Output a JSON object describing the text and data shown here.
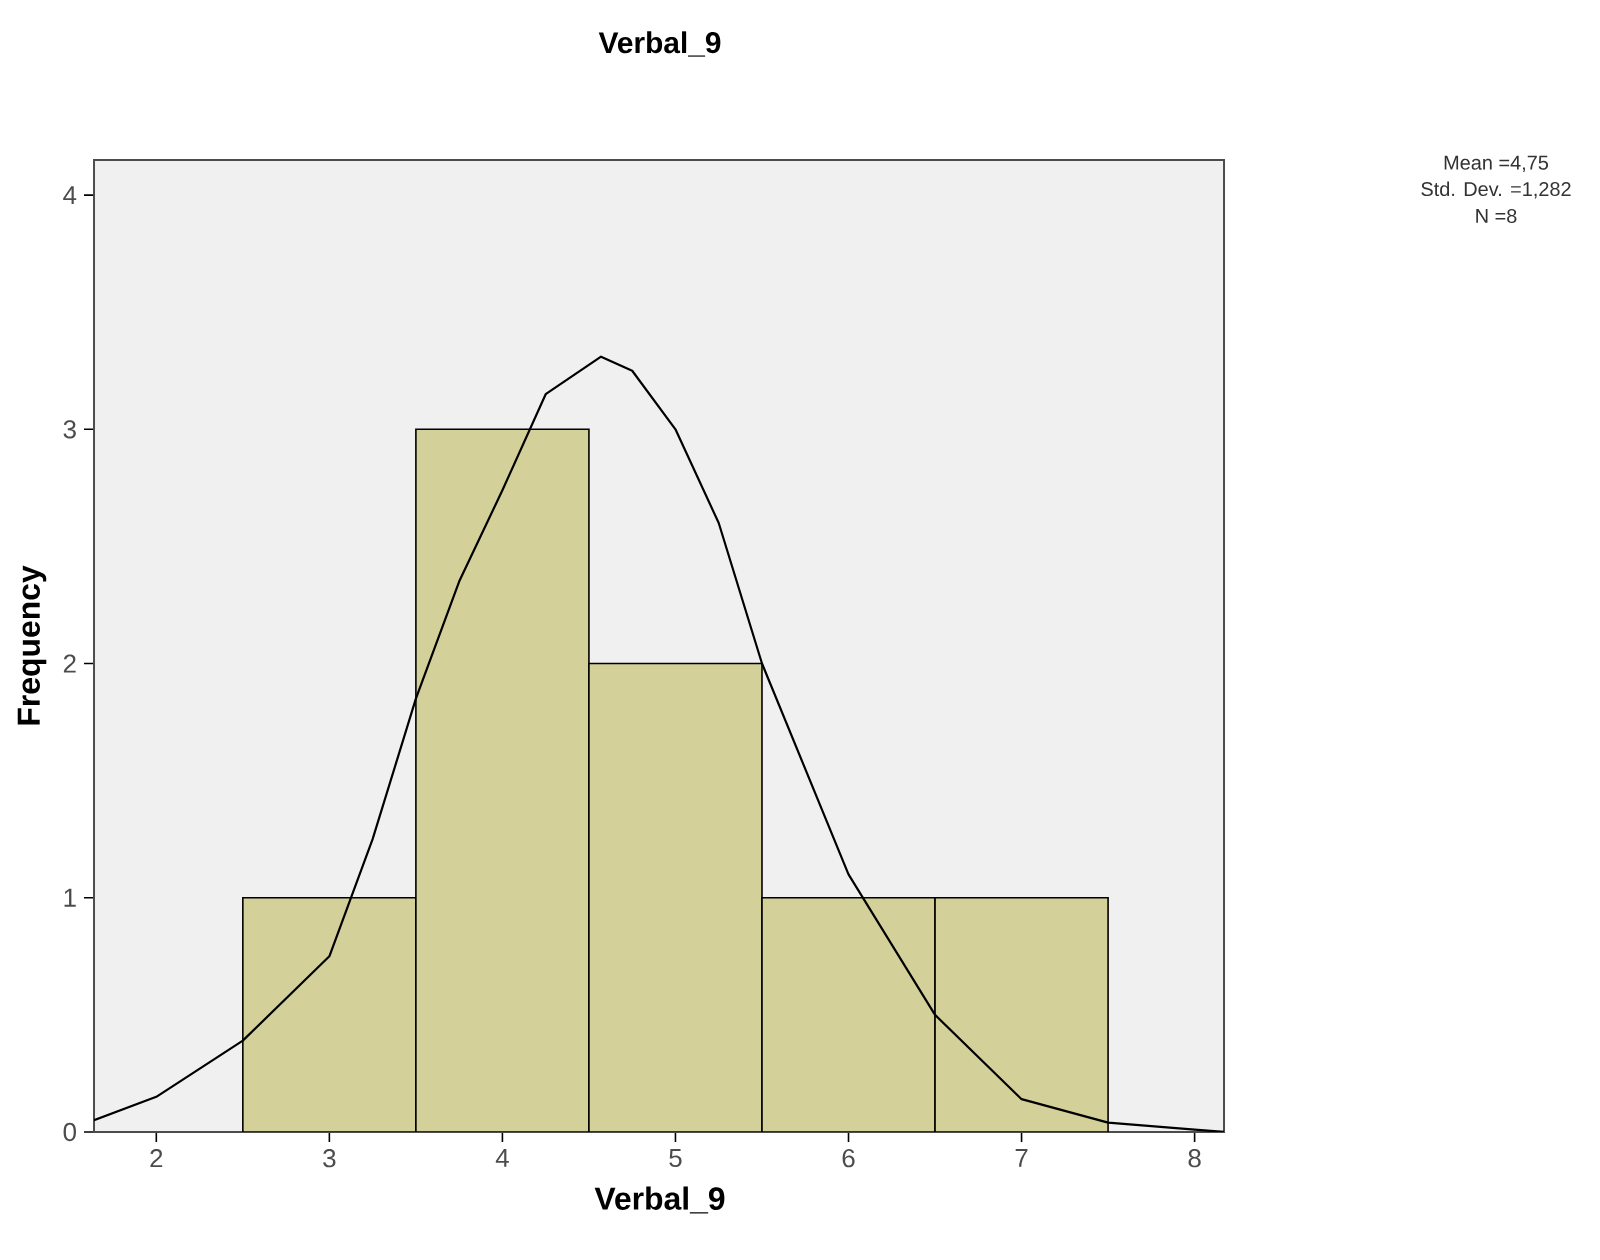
{
  "chart_data": {
    "type": "histogram",
    "title": "Verbal_9",
    "xlabel": "Verbal_9",
    "ylabel": "Frequency",
    "series": [
      {
        "bins": [
          2.5,
          3.5,
          4.5,
          5.5,
          6.5,
          7.5
        ],
        "values": [
          1,
          3,
          2,
          1,
          1
        ],
        "color": "#d3d09a"
      },
      {
        "type": "line",
        "color": "#000000",
        "x": [
          1.64,
          2,
          2.5,
          3,
          3.25,
          3.5,
          3.75,
          4,
          4.25,
          4.57,
          4.75,
          5,
          5.25,
          5.5,
          6,
          6.5,
          7,
          7.5,
          8,
          8.17
        ],
        "values": [
          0.05,
          0.15,
          0.39,
          0.75,
          1.25,
          1.85,
          2.35,
          2.74,
          3.15,
          3.31,
          3.25,
          3.0,
          2.6,
          2.0,
          1.1,
          0.5,
          0.14,
          0.04,
          0.01,
          0.0
        ]
      }
    ],
    "xlim": [
      1.64,
      8.17
    ],
    "ylim": [
      0,
      4.15
    ],
    "xticks": [
      2,
      3,
      4,
      5,
      6,
      7,
      8
    ],
    "yticks": [
      0,
      1,
      2,
      3,
      4
    ],
    "grid": false,
    "annotations": [
      "Mean =4,75",
      "Std. Dev. =1,282",
      "N =8"
    ]
  }
}
